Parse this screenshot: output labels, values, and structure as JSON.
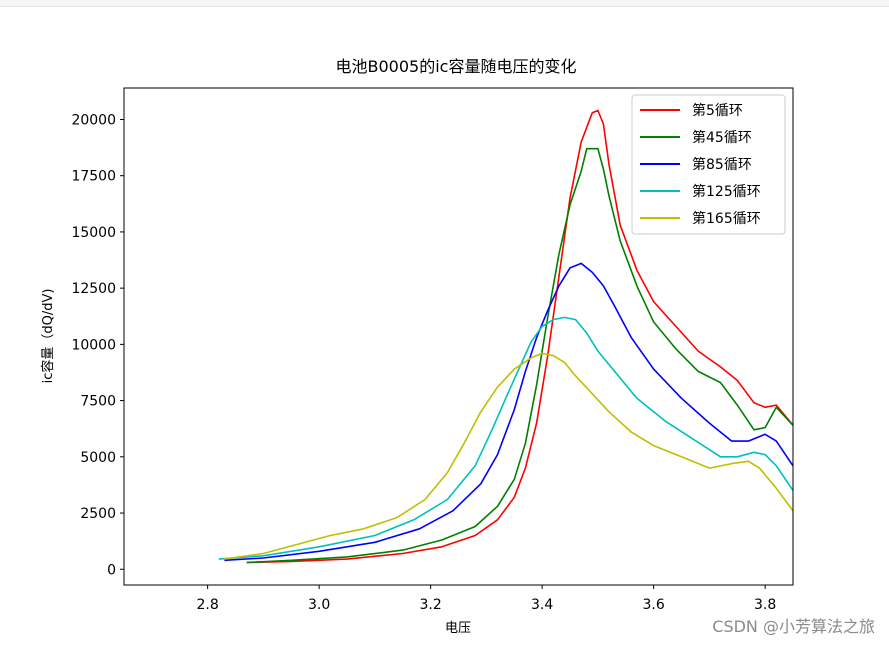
{
  "watermark": "CSDN @小芳算法之旅",
  "chart_data": {
    "type": "line",
    "title": "电池B0005的ic容量随电压的变化",
    "xlabel": "电压",
    "ylabel": "ic容量（dQ/dV)",
    "xlim": [
      2.65,
      3.85
    ],
    "ylim": [
      -700,
      21400
    ],
    "xticks": [
      2.8,
      3.0,
      3.2,
      3.4,
      3.6,
      3.8
    ],
    "xtick_labels": [
      "2.8",
      "3.0",
      "3.2",
      "3.4",
      "3.6",
      "3.8"
    ],
    "yticks": [
      0,
      2500,
      5000,
      7500,
      10000,
      12500,
      15000,
      17500,
      20000
    ],
    "ytick_labels": [
      "0",
      "2500",
      "5000",
      "7500",
      "10000",
      "12500",
      "15000",
      "17500",
      "20000"
    ],
    "legend_position": "upper right",
    "grid": false,
    "series": [
      {
        "name": "第5循环",
        "color": "#ff0000",
        "x": [
          2.87,
          2.95,
          3.05,
          3.15,
          3.22,
          3.28,
          3.32,
          3.35,
          3.37,
          3.39,
          3.41,
          3.43,
          3.45,
          3.47,
          3.49,
          3.5,
          3.51,
          3.52,
          3.54,
          3.57,
          3.6,
          3.64,
          3.68,
          3.72,
          3.75,
          3.78,
          3.8,
          3.82,
          3.85
        ],
        "y": [
          300,
          350,
          450,
          700,
          1000,
          1500,
          2200,
          3200,
          4500,
          6500,
          9500,
          13000,
          16500,
          19000,
          20300,
          20400,
          19800,
          18000,
          15300,
          13300,
          11900,
          10800,
          9700,
          9000,
          8400,
          7400,
          7200,
          7300,
          6400
        ]
      },
      {
        "name": "第45循环",
        "color": "#008000",
        "x": [
          2.87,
          2.95,
          3.05,
          3.15,
          3.22,
          3.28,
          3.32,
          3.35,
          3.37,
          3.39,
          3.41,
          3.43,
          3.45,
          3.47,
          3.48,
          3.5,
          3.51,
          3.52,
          3.54,
          3.57,
          3.6,
          3.64,
          3.68,
          3.72,
          3.75,
          3.78,
          3.8,
          3.82,
          3.85
        ],
        "y": [
          300,
          400,
          550,
          850,
          1300,
          1900,
          2800,
          4000,
          5600,
          8200,
          11200,
          14000,
          16200,
          17700,
          18700,
          18700,
          17800,
          16600,
          14600,
          12600,
          11000,
          9800,
          8800,
          8300,
          7300,
          6200,
          6300,
          7200,
          6400
        ]
      },
      {
        "name": "第85循环",
        "color": "#0000ff",
        "x": [
          2.83,
          2.9,
          3.0,
          3.1,
          3.18,
          3.24,
          3.29,
          3.32,
          3.35,
          3.37,
          3.39,
          3.41,
          3.43,
          3.45,
          3.47,
          3.49,
          3.51,
          3.53,
          3.56,
          3.6,
          3.65,
          3.7,
          3.74,
          3.77,
          3.8,
          3.82,
          3.85
        ],
        "y": [
          400,
          500,
          800,
          1200,
          1800,
          2600,
          3800,
          5100,
          7100,
          8800,
          10300,
          11500,
          12600,
          13400,
          13600,
          13200,
          12600,
          11700,
          10300,
          8900,
          7600,
          6500,
          5700,
          5700,
          6000,
          5700,
          4600
        ]
      },
      {
        "name": "第125循环",
        "color": "#00bfbf",
        "x": [
          2.82,
          2.9,
          3.0,
          3.1,
          3.17,
          3.23,
          3.28,
          3.31,
          3.34,
          3.36,
          3.38,
          3.4,
          3.42,
          3.44,
          3.46,
          3.48,
          3.5,
          3.53,
          3.57,
          3.62,
          3.67,
          3.72,
          3.75,
          3.78,
          3.8,
          3.82,
          3.85
        ],
        "y": [
          450,
          600,
          1000,
          1500,
          2200,
          3100,
          4600,
          6200,
          7900,
          9000,
          10100,
          10800,
          11100,
          11200,
          11100,
          10500,
          9700,
          8800,
          7600,
          6600,
          5800,
          5000,
          5000,
          5200,
          5100,
          4600,
          3500
        ]
      },
      {
        "name": "第165循环",
        "color": "#bfbf00",
        "x": [
          2.83,
          2.9,
          2.96,
          3.02,
          3.08,
          3.14,
          3.19,
          3.23,
          3.26,
          3.29,
          3.32,
          3.35,
          3.38,
          3.4,
          3.42,
          3.44,
          3.46,
          3.49,
          3.52,
          3.56,
          3.6,
          3.65,
          3.7,
          3.74,
          3.77,
          3.79,
          3.82,
          3.85
        ],
        "y": [
          450,
          700,
          1100,
          1500,
          1800,
          2300,
          3100,
          4300,
          5600,
          7000,
          8100,
          8900,
          9400,
          9600,
          9500,
          9200,
          8600,
          7800,
          7000,
          6100,
          5500,
          5000,
          4500,
          4700,
          4800,
          4500,
          3600,
          2600
        ]
      }
    ]
  }
}
